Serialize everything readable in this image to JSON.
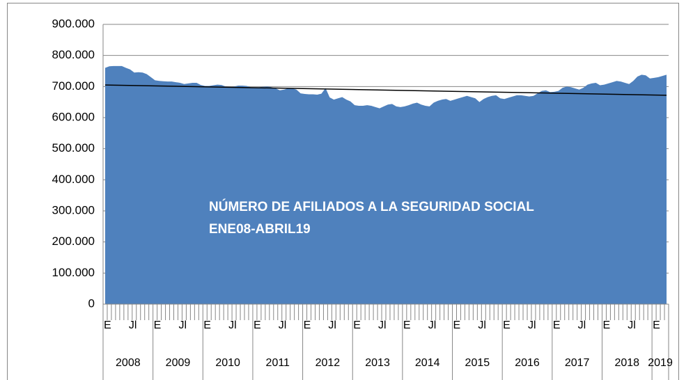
{
  "chart_data": {
    "type": "area",
    "title": "NÚMERO DE AFILIADOS A LA SEGURIDAD SOCIAL",
    "subtitle": "ENE08-ABRIL19",
    "categories": [
      "E",
      null,
      null,
      null,
      null,
      null,
      "Jl",
      null,
      null,
      null,
      null,
      null,
      "E",
      null,
      null,
      null,
      null,
      null,
      "Jl",
      null,
      null,
      null,
      null,
      null,
      "E",
      null,
      null,
      null,
      null,
      null,
      "Jl",
      null,
      null,
      null,
      null,
      null,
      "E",
      null,
      null,
      null,
      null,
      null,
      "Jl",
      null,
      null,
      null,
      null,
      null,
      "E",
      null,
      null,
      null,
      null,
      null,
      "Jl",
      null,
      null,
      null,
      null,
      null,
      "E",
      null,
      null,
      null,
      null,
      null,
      "Jl",
      null,
      null,
      null,
      null,
      null,
      "E",
      null,
      null,
      null,
      null,
      null,
      "Jl",
      null,
      null,
      null,
      null,
      null,
      "E",
      null,
      null,
      null,
      null,
      null,
      "Jl",
      null,
      null,
      null,
      null,
      null,
      "E",
      null,
      null,
      null,
      null,
      null,
      "Jl",
      null,
      null,
      null,
      null,
      null,
      "E",
      null,
      null,
      null,
      null,
      null,
      "Jl",
      null,
      null,
      null,
      null,
      null,
      "E",
      null,
      null,
      null,
      null,
      null,
      "Jl",
      null,
      null,
      null,
      null,
      null,
      "E",
      null,
      null,
      null
    ],
    "years": [
      "2008",
      "2009",
      "2010",
      "2011",
      "2012",
      "2013",
      "2014",
      "2015",
      "2016",
      "2017",
      "2018",
      "2019"
    ],
    "values": [
      760000,
      765000,
      766000,
      766000,
      766000,
      760000,
      755000,
      745000,
      746000,
      745000,
      740000,
      730000,
      720000,
      718000,
      717000,
      716000,
      716000,
      714000,
      712000,
      708000,
      710000,
      712000,
      712000,
      705000,
      702000,
      702000,
      704000,
      706000,
      705000,
      700000,
      698000,
      700000,
      703000,
      703000,
      702000,
      698000,
      698000,
      698000,
      699000,
      700000,
      698000,
      694000,
      688000,
      690000,
      694000,
      694000,
      690000,
      678000,
      676000,
      675000,
      675000,
      674000,
      677000,
      695000,
      665000,
      658000,
      662000,
      666000,
      658000,
      652000,
      640000,
      638000,
      638000,
      640000,
      638000,
      634000,
      630000,
      636000,
      642000,
      644000,
      636000,
      634000,
      636000,
      640000,
      645000,
      648000,
      642000,
      638000,
      636000,
      648000,
      654000,
      658000,
      660000,
      654000,
      658000,
      662000,
      666000,
      670000,
      666000,
      662000,
      650000,
      660000,
      666000,
      670000,
      672000,
      662000,
      660000,
      664000,
      668000,
      672000,
      672000,
      670000,
      668000,
      670000,
      678000,
      686000,
      688000,
      682000,
      683000,
      686000,
      696000,
      700000,
      698000,
      694000,
      690000,
      696000,
      706000,
      710000,
      712000,
      704000,
      706000,
      710000,
      714000,
      718000,
      716000,
      712000,
      708000,
      718000,
      732000,
      738000,
      736000,
      726000,
      728000,
      730000,
      734000,
      738000
    ],
    "color": "#4f81bd",
    "trendline": [
      705000,
      672000
    ],
    "trendline_color": "#000000",
    "ylim": [
      0,
      900000
    ],
    "yticks": [
      0,
      {
        "value": 100000,
        "label": "100.000"
      },
      {
        "value": 200000,
        "label": "200.000"
      },
      {
        "value": 300000,
        "label": "300.000"
      },
      {
        "value": 400000,
        "label": "400.000"
      },
      {
        "value": 500000,
        "label": "500.000"
      },
      {
        "value": 600000,
        "label": "600.000"
      },
      {
        "value": 700000,
        "label": "700.000"
      },
      {
        "value": 800000,
        "label": "800.000"
      },
      {
        "value": 900000,
        "label": "900.000"
      }
    ],
    "grid": true
  }
}
